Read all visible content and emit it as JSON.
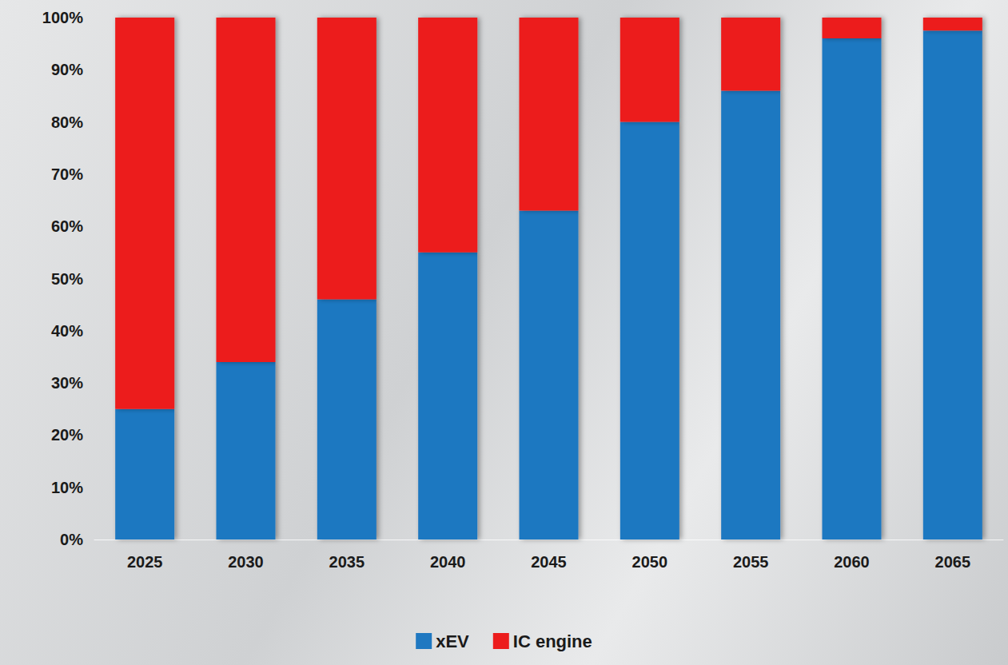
{
  "chart_data": {
    "type": "bar",
    "stacked": true,
    "grid": false,
    "legend": "bottom",
    "categories": [
      "2025",
      "2030",
      "2035",
      "2040",
      "2045",
      "2050",
      "2055",
      "2060",
      "2065"
    ],
    "series": [
      {
        "name": "xEV",
        "color": "#1f78c1",
        "values": [
          25,
          34,
          46,
          55,
          63,
          80,
          86,
          96,
          97.5
        ]
      },
      {
        "name": "IC engine",
        "color": "#ec1c1c",
        "values": [
          75,
          66,
          54,
          45,
          37,
          20,
          14,
          4,
          2.5
        ]
      }
    ],
    "ylim": [
      0,
      100
    ],
    "yticks": [
      {
        "value": 0,
        "label": "0%"
      },
      {
        "value": 10,
        "label": "10%"
      },
      {
        "value": 20,
        "label": "20%"
      },
      {
        "value": 30,
        "label": "30%"
      },
      {
        "value": 40,
        "label": "40%"
      },
      {
        "value": 50,
        "label": "50%"
      },
      {
        "value": 60,
        "label": "60%"
      },
      {
        "value": 70,
        "label": "70%"
      },
      {
        "value": 80,
        "label": "80%"
      },
      {
        "value": 90,
        "label": "90%"
      },
      {
        "value": 100,
        "label": "100%"
      }
    ]
  }
}
